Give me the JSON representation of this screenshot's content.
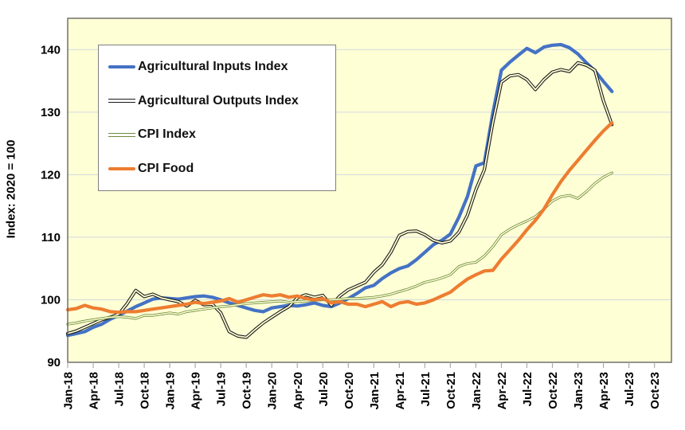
{
  "chart_data": {
    "type": "line",
    "title": "",
    "ylabel": "Index: 2020 = 100",
    "ylim": [
      90,
      145
    ],
    "yticks": [
      90,
      100,
      110,
      120,
      130,
      140
    ],
    "grid": true,
    "legend_position": "top-left",
    "plot_bg_color": "#FFFFD6",
    "grid_color": "#d2d9de",
    "border_color": "#595959",
    "tick_color": "#ababab",
    "x_tick_interval_months": 3,
    "x_axis_span_months": 72,
    "x_tick_labels": [
      "Jan-18",
      "Apr-18",
      "Jul-18",
      "Oct-18",
      "Jan-19",
      "Apr-19",
      "Jul-19",
      "Oct-19",
      "Jan-20",
      "Apr-20",
      "Jul-20",
      "Oct-20",
      "Jan-21",
      "Apr-21",
      "Jul-21",
      "Oct-21",
      "Jan-22",
      "Apr-22",
      "Jul-22",
      "Oct-22",
      "Jan-23",
      "Apr-23",
      "Jul-23",
      "Oct-23"
    ],
    "categories": [
      "Jan-18",
      "Feb-18",
      "Mar-18",
      "Apr-18",
      "May-18",
      "Jun-18",
      "Jul-18",
      "Aug-18",
      "Sep-18",
      "Oct-18",
      "Nov-18",
      "Dec-18",
      "Jan-19",
      "Feb-19",
      "Mar-19",
      "Apr-19",
      "May-19",
      "Jun-19",
      "Jul-19",
      "Aug-19",
      "Sep-19",
      "Oct-19",
      "Nov-19",
      "Dec-19",
      "Jan-20",
      "Feb-20",
      "Mar-20",
      "Apr-20",
      "May-20",
      "Jun-20",
      "Jul-20",
      "Aug-20",
      "Sep-20",
      "Oct-20",
      "Nov-20",
      "Dec-20",
      "Jan-21",
      "Feb-21",
      "Mar-21",
      "Apr-21",
      "May-21",
      "Jun-21",
      "Jul-21",
      "Aug-21",
      "Sep-21",
      "Oct-21",
      "Nov-21",
      "Dec-21",
      "Jan-22",
      "Feb-22",
      "Mar-22",
      "Apr-22",
      "May-22",
      "Jun-22",
      "Jul-22",
      "Aug-22",
      "Sep-22",
      "Oct-22",
      "Nov-22",
      "Dec-22",
      "Jan-23",
      "Feb-23",
      "Mar-23",
      "Apr-23",
      "May-23"
    ],
    "series": [
      {
        "name": "Agricultural Inputs Index",
        "color": "#4472C4",
        "line_style": "thick",
        "values": [
          94.3,
          94.6,
          94.9,
          95.6,
          96.1,
          96.9,
          97.5,
          98.2,
          98.9,
          99.5,
          100.1,
          100.3,
          100.2,
          100.1,
          100.3,
          100.5,
          100.6,
          100.4,
          100.0,
          99.5,
          99.1,
          98.7,
          98.3,
          98.1,
          98.7,
          98.9,
          99.1,
          99.0,
          99.2,
          99.5,
          99.1,
          98.9,
          99.5,
          100.2,
          101.0,
          101.9,
          102.3,
          103.4,
          104.3,
          105.0,
          105.4,
          106.4,
          107.6,
          108.8,
          109.5,
          110.5,
          113.2,
          116.5,
          121.4,
          121.9,
          129.9,
          136.7,
          138.0,
          139.1,
          140.2,
          139.5,
          140.4,
          140.7,
          140.8,
          140.3,
          139.3,
          137.9,
          136.6,
          134.9,
          133.3
        ]
      },
      {
        "name": "Agricultural Outputs Index",
        "color": "#1a1a1a",
        "line_style": "double-thin",
        "values": [
          94.6,
          95.0,
          95.6,
          96.2,
          96.8,
          97.2,
          97.7,
          99.4,
          101.5,
          100.5,
          100.9,
          100.3,
          100.0,
          99.7,
          99.0,
          99.9,
          99.2,
          99.3,
          97.9,
          94.9,
          94.2,
          94.0,
          95.2,
          96.3,
          97.2,
          98.1,
          98.9,
          100.3,
          100.8,
          100.4,
          100.7,
          99.1,
          100.6,
          101.6,
          102.2,
          102.8,
          104.4,
          105.6,
          107.6,
          110.3,
          110.9,
          111.0,
          110.4,
          109.5,
          109.1,
          109.4,
          110.8,
          113.5,
          117.6,
          120.8,
          128.4,
          134.8,
          135.8,
          136.0,
          135.2,
          133.6,
          135.2,
          136.4,
          136.8,
          136.5,
          137.9,
          137.5,
          136.7,
          131.8,
          128.0
        ]
      },
      {
        "name": "CPI Index",
        "color": "#6e8b3c",
        "line_style": "double-thin",
        "values": [
          96.1,
          96.3,
          96.6,
          96.8,
          97.0,
          97.2,
          97.3,
          97.2,
          97.0,
          97.5,
          97.5,
          97.7,
          97.9,
          97.7,
          98.1,
          98.3,
          98.5,
          98.7,
          98.9,
          99.0,
          99.2,
          99.4,
          99.5,
          99.6,
          99.7,
          99.8,
          99.6,
          99.7,
          99.8,
          99.9,
          100.0,
          100.0,
          100.1,
          100.2,
          100.2,
          100.3,
          100.4,
          100.6,
          100.9,
          101.3,
          101.7,
          102.2,
          102.8,
          103.1,
          103.5,
          104.0,
          105.3,
          105.8,
          106.0,
          107.0,
          108.5,
          110.4,
          111.3,
          112.0,
          112.6,
          113.3,
          114.5,
          115.8,
          116.5,
          116.7,
          116.2,
          117.3,
          118.6,
          119.6,
          120.3
        ]
      },
      {
        "name": "CPI Food",
        "color": "#ED7D31",
        "line_style": "thick",
        "values": [
          98.4,
          98.6,
          99.1,
          98.7,
          98.5,
          98.1,
          98.0,
          98.1,
          98.1,
          98.3,
          98.5,
          98.7,
          98.9,
          99.1,
          99.3,
          99.6,
          99.4,
          99.6,
          99.8,
          100.2,
          99.6,
          100.0,
          100.4,
          100.8,
          100.6,
          100.8,
          100.4,
          100.6,
          100.2,
          100.0,
          100.2,
          99.5,
          99.7,
          99.3,
          99.3,
          98.9,
          99.3,
          99.7,
          98.9,
          99.5,
          99.7,
          99.3,
          99.5,
          100.0,
          100.6,
          101.2,
          102.3,
          103.3,
          104.0,
          104.6,
          104.7,
          106.5,
          108.0,
          109.5,
          111.2,
          112.7,
          114.5,
          116.8,
          118.9,
          120.7,
          122.3,
          123.9,
          125.5,
          127.0,
          128.3
        ]
      }
    ]
  }
}
